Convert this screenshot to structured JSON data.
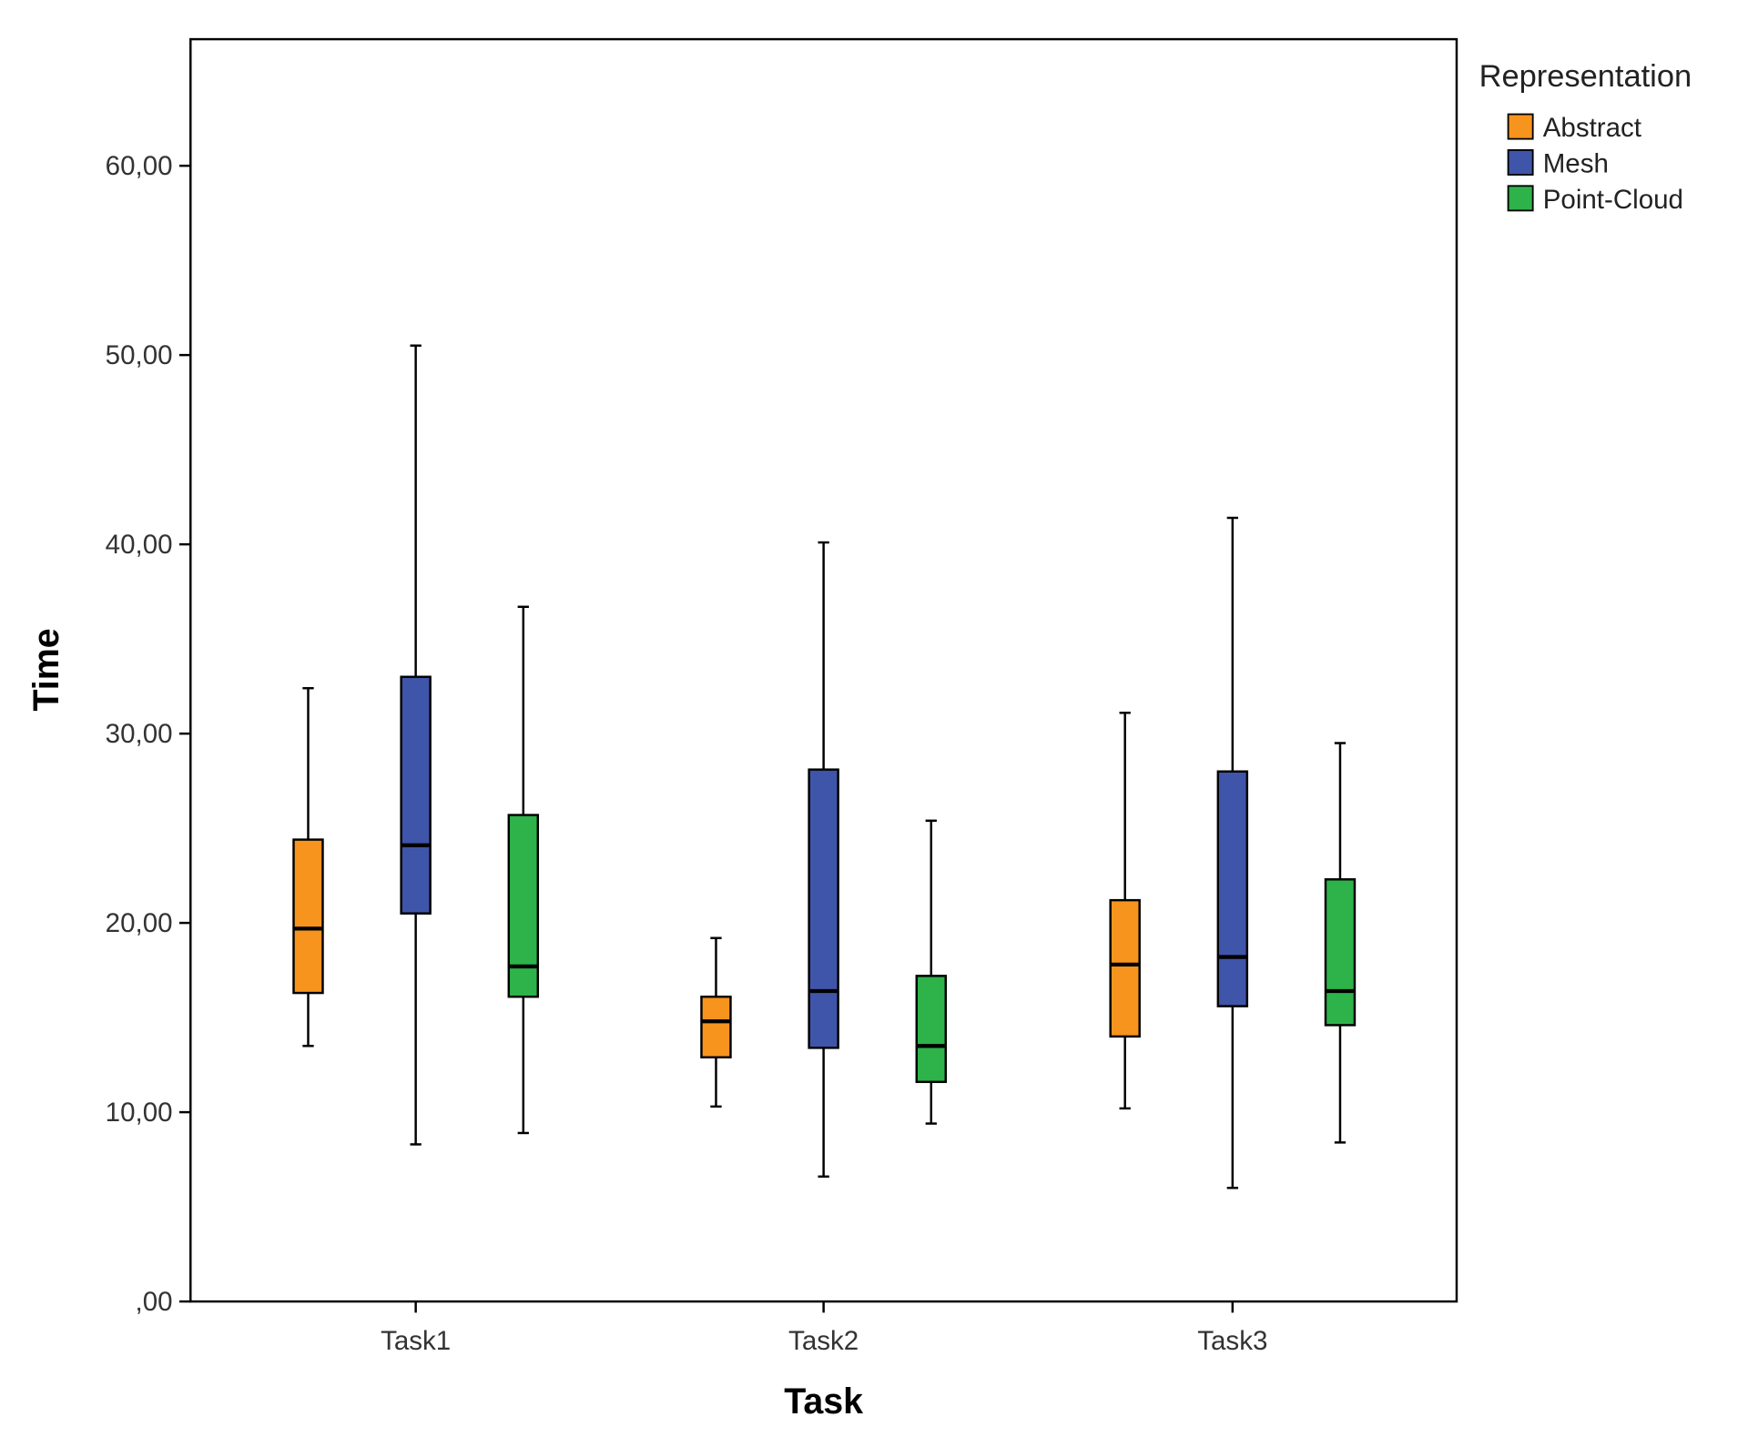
{
  "chart_data": {
    "type": "boxplot",
    "title": "",
    "xlabel": "Task",
    "ylabel": "Time",
    "ylim": [
      0,
      67
    ],
    "yticks": [
      0,
      10,
      20,
      30,
      40,
      50,
      60
    ],
    "ytick_labels": [
      ",00",
      "10,00",
      "20,00",
      "30,00",
      "40,00",
      "50,00",
      "60,00"
    ],
    "categories": [
      "Task1",
      "Task2",
      "Task3"
    ],
    "legend": {
      "title": "Representation",
      "placement": "top-right-outside"
    },
    "series": [
      {
        "name": "Abstract",
        "color": "#F7941D",
        "boxes": [
          {
            "min": 13.5,
            "q1": 16.3,
            "median": 19.7,
            "q3": 24.4,
            "max": 32.4
          },
          {
            "min": 10.3,
            "q1": 12.9,
            "median": 14.8,
            "q3": 16.1,
            "max": 19.2
          },
          {
            "min": 10.2,
            "q1": 14.0,
            "median": 17.8,
            "q3": 21.2,
            "max": 31.1
          }
        ]
      },
      {
        "name": "Mesh",
        "color": "#3F55A9",
        "boxes": [
          {
            "min": 8.3,
            "q1": 20.5,
            "median": 24.1,
            "q3": 33.0,
            "max": 50.5
          },
          {
            "min": 6.6,
            "q1": 13.4,
            "median": 16.4,
            "q3": 28.1,
            "max": 40.1
          },
          {
            "min": 6.0,
            "q1": 15.6,
            "median": 18.2,
            "q3": 28.0,
            "max": 41.4
          }
        ]
      },
      {
        "name": "Point-Cloud",
        "color": "#2DB34A",
        "boxes": [
          {
            "min": 8.9,
            "q1": 16.1,
            "median": 17.7,
            "q3": 25.7,
            "max": 36.7
          },
          {
            "min": 9.4,
            "q1": 11.6,
            "median": 13.5,
            "q3": 17.2,
            "max": 25.4
          },
          {
            "min": 8.4,
            "q1": 14.6,
            "median": 16.4,
            "q3": 22.3,
            "max": 29.5
          }
        ]
      }
    ]
  }
}
